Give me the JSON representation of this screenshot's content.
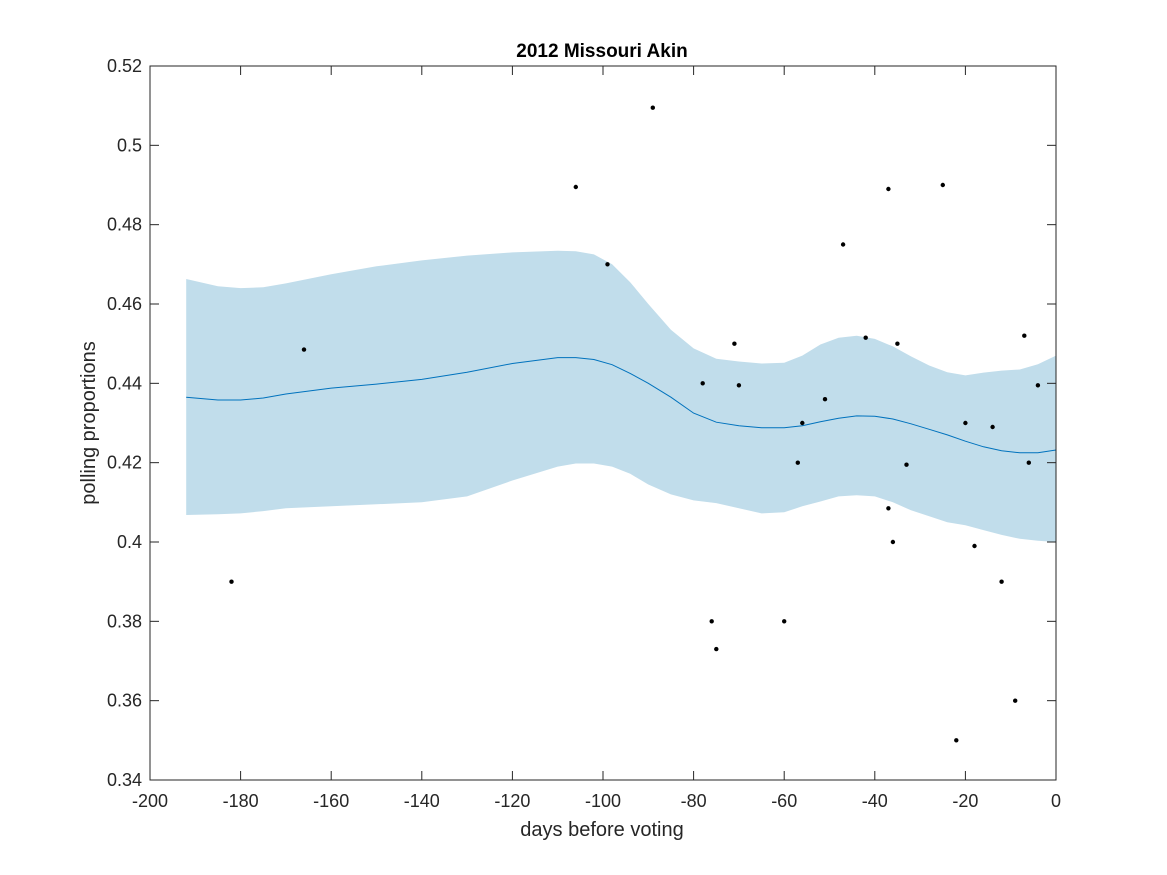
{
  "chart_data": {
    "type": "scatter",
    "title": "2012 Missouri Akin",
    "xlabel": "days before voting",
    "ylabel": "polling proportions",
    "xlim": [
      -200,
      0
    ],
    "ylim": [
      0.34,
      0.52
    ],
    "x_ticks": [
      -200,
      -180,
      -160,
      -140,
      -120,
      -100,
      -80,
      -60,
      -40,
      -20,
      0
    ],
    "y_ticks": [
      0.34,
      0.36,
      0.38,
      0.4,
      0.42,
      0.44,
      0.46,
      0.48,
      0.5,
      0.52
    ],
    "x_tick_labels": [
      "-200",
      "-180",
      "-160",
      "-140",
      "-120",
      "-100",
      "-80",
      "-60",
      "-40",
      "-20",
      "0"
    ],
    "y_tick_labels": [
      "0.34",
      "0.36",
      "0.38",
      "0.4",
      "0.42",
      "0.44",
      "0.46",
      "0.48",
      "0.5",
      "0.52"
    ],
    "grid": false,
    "colors": {
      "band": "#c1ddeb",
      "line": "#0072bd",
      "points": "#000000",
      "axes": "#262626"
    },
    "points": [
      [
        -182,
        0.39
      ],
      [
        -166,
        0.4485
      ],
      [
        -106,
        0.4895
      ],
      [
        -99,
        0.47
      ],
      [
        -89,
        0.5095
      ],
      [
        -78,
        0.44
      ],
      [
        -76,
        0.38
      ],
      [
        -75,
        0.373
      ],
      [
        -71,
        0.45
      ],
      [
        -70,
        0.4395
      ],
      [
        -60,
        0.38
      ],
      [
        -57,
        0.42
      ],
      [
        -56,
        0.43
      ],
      [
        -51,
        0.436
      ],
      [
        -47,
        0.475
      ],
      [
        -42,
        0.4515
      ],
      [
        -37,
        0.489
      ],
      [
        -37,
        0.4085
      ],
      [
        -36,
        0.4
      ],
      [
        -35,
        0.45
      ],
      [
        -33,
        0.4195
      ],
      [
        -25,
        0.49
      ],
      [
        -22,
        0.35
      ],
      [
        -20,
        0.43
      ],
      [
        -18,
        0.399
      ],
      [
        -14,
        0.429
      ],
      [
        -12,
        0.39
      ],
      [
        -9,
        0.36
      ],
      [
        -7,
        0.452
      ],
      [
        -6,
        0.42
      ],
      [
        -4,
        0.4395
      ]
    ],
    "trend": {
      "x": [
        -192,
        -185,
        -180,
        -175,
        -170,
        -160,
        -150,
        -140,
        -130,
        -120,
        -110,
        -106,
        -102,
        -98,
        -94,
        -90,
        -85,
        -80,
        -75,
        -70,
        -65,
        -60,
        -56,
        -52,
        -48,
        -44,
        -40,
        -36,
        -32,
        -28,
        -24,
        -20,
        -16,
        -12,
        -8,
        -4,
        0
      ],
      "mean": [
        0.4365,
        0.4358,
        0.4358,
        0.4363,
        0.4373,
        0.4388,
        0.4398,
        0.441,
        0.4428,
        0.445,
        0.4465,
        0.4465,
        0.446,
        0.4447,
        0.4425,
        0.44,
        0.4365,
        0.4325,
        0.4302,
        0.4293,
        0.4288,
        0.4288,
        0.4293,
        0.4303,
        0.4312,
        0.4318,
        0.4317,
        0.431,
        0.4298,
        0.4284,
        0.427,
        0.4254,
        0.424,
        0.423,
        0.4225,
        0.4225,
        0.4232
      ],
      "upper": [
        0.4663,
        0.4645,
        0.464,
        0.4642,
        0.4652,
        0.4675,
        0.4695,
        0.471,
        0.4722,
        0.473,
        0.4734,
        0.4733,
        0.4725,
        0.47,
        0.4655,
        0.46,
        0.4535,
        0.4488,
        0.4462,
        0.4455,
        0.445,
        0.4452,
        0.447,
        0.4498,
        0.4515,
        0.452,
        0.4512,
        0.4493,
        0.4468,
        0.4445,
        0.4428,
        0.442,
        0.4427,
        0.4432,
        0.4435,
        0.4448,
        0.447
      ],
      "lower": [
        0.4068,
        0.407,
        0.4072,
        0.4078,
        0.4085,
        0.409,
        0.4095,
        0.41,
        0.4115,
        0.4155,
        0.419,
        0.4198,
        0.4198,
        0.419,
        0.4172,
        0.4145,
        0.412,
        0.4105,
        0.4098,
        0.4085,
        0.4072,
        0.4075,
        0.409,
        0.4102,
        0.4115,
        0.4118,
        0.4115,
        0.41,
        0.408,
        0.4065,
        0.405,
        0.4042,
        0.403,
        0.4018,
        0.4008,
        0.4003,
        0.4
      ]
    }
  }
}
